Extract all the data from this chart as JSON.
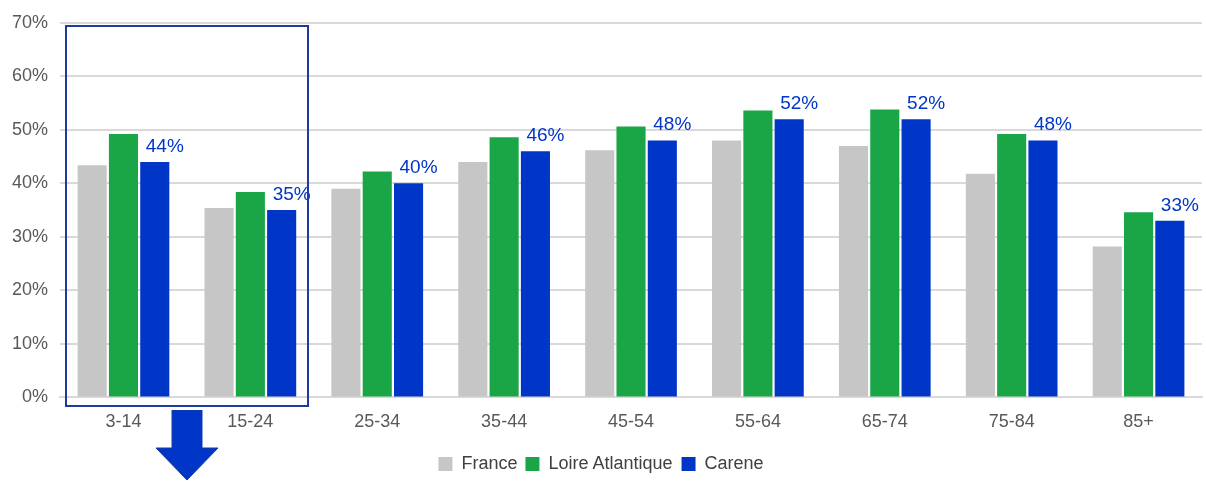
{
  "chart_data": {
    "type": "bar",
    "categories": [
      "3-14",
      "15-24",
      "25-34",
      "35-44",
      "45-54",
      "55-64",
      "65-74",
      "75-84",
      "85+"
    ],
    "series": [
      {
        "name": "France",
        "color": "#c6c6c6",
        "values": [
          43.4,
          35.4,
          39,
          44,
          46.2,
          48,
          47,
          41.8,
          28.2
        ]
      },
      {
        "name": "Loire Atlantique",
        "color": "#1aa647",
        "values": [
          49.2,
          38.4,
          42.2,
          48.6,
          50.6,
          53.6,
          53.8,
          49.2,
          34.6
        ]
      },
      {
        "name": "Carene",
        "color": "#0036c8",
        "values": [
          44,
          35,
          40,
          46,
          48,
          52,
          52,
          48,
          33
        ],
        "value_labels": [
          "44%",
          "35%",
          "40%",
          "46%",
          "48%",
          "52%",
          "52%",
          "48%",
          "33%"
        ]
      }
    ],
    "ylim": [
      0,
      70
    ],
    "yticks": [
      {
        "value": 0,
        "label": "0%"
      },
      {
        "value": 10,
        "label": "10%"
      },
      {
        "value": 20,
        "label": "20%"
      },
      {
        "value": 30,
        "label": "30%"
      },
      {
        "value": 40,
        "label": "40%"
      },
      {
        "value": 50,
        "label": "50%"
      },
      {
        "value": 60,
        "label": "60%"
      },
      {
        "value": 70,
        "label": "70%"
      }
    ],
    "grid": "y",
    "legend": "bottom"
  }
}
